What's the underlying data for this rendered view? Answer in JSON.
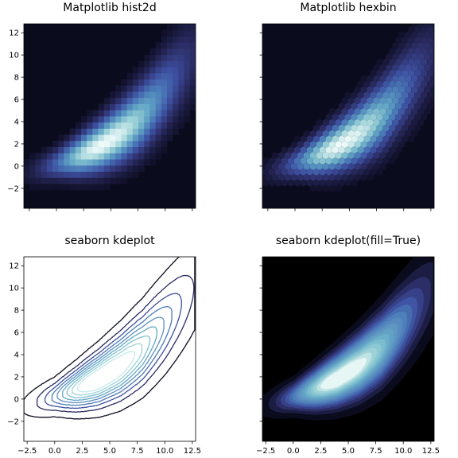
{
  "figure": {
    "panels": [
      {
        "key": "hist2d",
        "title": "Matplotlib hist2d",
        "style": "binned-squares"
      },
      {
        "key": "hexbin",
        "title": "Matplotlib hexbin",
        "style": "binned-hexagons"
      },
      {
        "key": "kde",
        "title": "seaborn kdeplot",
        "style": "contour-lines"
      },
      {
        "key": "kdefill",
        "title": "seaborn kdeplot(fill=True)",
        "style": "filled-contours"
      }
    ]
  },
  "chart_data": [
    {
      "type": "heatmap",
      "title": "Matplotlib hist2d",
      "xlim": [
        -3,
        12.8
      ],
      "ylim": [
        -3.8,
        12.8
      ],
      "xticks_labeled": false,
      "yticks": [
        -2,
        0,
        2,
        4,
        6,
        8,
        10,
        12
      ],
      "yticklabels": [
        "−2",
        "0",
        "2",
        "4",
        "6",
        "8",
        "10",
        "12"
      ],
      "colormap": [
        "#0b0b1e",
        "#2b2c63",
        "#3d4fa0",
        "#4b7bb8",
        "#63a7c6",
        "#9fd3d8",
        "#f0fbfa"
      ],
      "density_ridge": {
        "x": [
          -2,
          0,
          2,
          4,
          6,
          8,
          10,
          11.5
        ],
        "y": [
          -0.4,
          0.2,
          0.9,
          1.8,
          3.0,
          4.6,
          6.8,
          8.6
        ]
      },
      "peak": {
        "x": 3.5,
        "y": 1.5
      }
    },
    {
      "type": "heatmap",
      "title": "Matplotlib hexbin",
      "xlim": [
        -3,
        12.8
      ],
      "ylim": [
        -3.8,
        12.8
      ],
      "xticks_labeled": false,
      "yticks_labeled": false,
      "colormap": [
        "#0b0b1e",
        "#2b2c63",
        "#3d4fa0",
        "#4b7bb8",
        "#63a7c6",
        "#9fd3d8",
        "#f0fbfa"
      ],
      "density_ridge": {
        "x": [
          -2,
          0,
          2,
          4,
          6,
          8,
          10,
          11.5
        ],
        "y": [
          -0.4,
          0.2,
          0.9,
          1.8,
          3.0,
          4.6,
          6.8,
          8.6
        ]
      },
      "peak": {
        "x": 3.5,
        "y": 1.5
      }
    },
    {
      "type": "contour",
      "title": "seaborn kdeplot",
      "xlim": [
        -2.8,
        12.8
      ],
      "ylim": [
        -3.8,
        12.8
      ],
      "xticks": [
        -2.5,
        0.0,
        2.5,
        5.0,
        7.5,
        10.0,
        12.5
      ],
      "xticklabels": [
        "−2.5",
        "0.0",
        "2.5",
        "5.0",
        "7.5",
        "10.0",
        "12.5"
      ],
      "yticks": [
        -2,
        0,
        2,
        4,
        6,
        8,
        10,
        12
      ],
      "yticklabels": [
        "−2",
        "0",
        "2",
        "4",
        "6",
        "8",
        "10",
        "12"
      ],
      "levels": 9,
      "level_colors": [
        "#0b0b1e",
        "#2b2c63",
        "#3d4fa0",
        "#4b7bb8",
        "#5d90c0",
        "#63a7c6",
        "#7fbfcf",
        "#9fd3d8",
        "#c6e9ea"
      ],
      "density_ridge": {
        "x": [
          -2,
          0,
          2,
          4,
          6,
          8,
          10,
          11.5
        ],
        "y": [
          -0.4,
          0.2,
          0.9,
          1.8,
          3.0,
          4.6,
          6.8,
          8.6
        ]
      }
    },
    {
      "type": "contour",
      "title": "seaborn kdeplot(fill=True)",
      "xlim": [
        -2.8,
        12.8
      ],
      "ylim": [
        -3.8,
        12.8
      ],
      "xticks": [
        -2.5,
        0.0,
        2.5,
        5.0,
        7.5,
        10.0,
        12.5
      ],
      "xticklabels": [
        "−2.5",
        "0.0",
        "2.5",
        "5.0",
        "7.5",
        "10.0",
        "12.5"
      ],
      "yticks_labeled": false,
      "filled": true,
      "background": "#000000",
      "levels": 9,
      "level_colors": [
        "#0b0b1e",
        "#2b2c63",
        "#3d4fa0",
        "#4b7bb8",
        "#5d90c0",
        "#63a7c6",
        "#7fbfcf",
        "#9fd3d8",
        "#e6f6f4"
      ],
      "density_ridge": {
        "x": [
          -2,
          0,
          2,
          4,
          6,
          8,
          10,
          11.5
        ],
        "y": [
          -0.4,
          0.2,
          0.9,
          1.8,
          3.0,
          4.6,
          6.8,
          8.6
        ]
      }
    }
  ]
}
